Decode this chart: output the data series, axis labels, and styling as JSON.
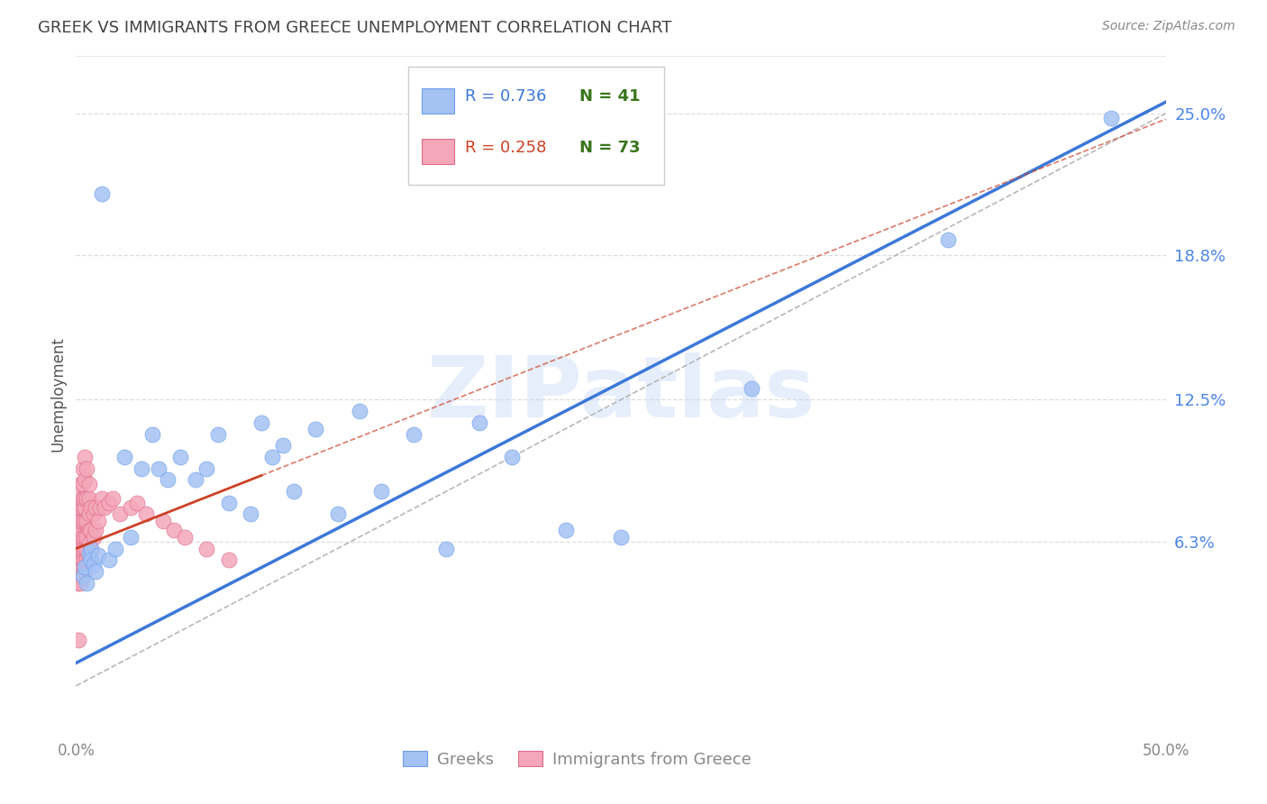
{
  "title": "GREEK VS IMMIGRANTS FROM GREECE UNEMPLOYMENT CORRELATION CHART",
  "source_text": "Source: ZipAtlas.com",
  "ylabel": "Unemployment",
  "watermark": "ZIPatlas",
  "x_min": 0.0,
  "x_max": 0.5,
  "y_min": -0.02,
  "y_max": 0.275,
  "y_ticks_right": [
    0.0,
    0.063,
    0.125,
    0.188,
    0.25
  ],
  "y_tick_labels_right": [
    "",
    "6.3%",
    "12.5%",
    "18.8%",
    "25.0%"
  ],
  "blue_color": "#a4c2f4",
  "pink_color": "#f4a7b9",
  "blue_edge_color": "#6d9eeb",
  "pink_edge_color": "#e06c8a",
  "blue_line_color": "#3c78d8",
  "pink_line_color": "#cc4125",
  "ref_line_color": "#b7b7b7",
  "blue_R": 0.736,
  "blue_N": 41,
  "pink_R": 0.258,
  "pink_N": 73,
  "blue_label": "Greeks",
  "pink_label": "Immigrants from Greece",
  "blue_scatter_x": [
    0.003,
    0.004,
    0.005,
    0.006,
    0.007,
    0.007,
    0.008,
    0.009,
    0.01,
    0.012,
    0.015,
    0.018,
    0.022,
    0.025,
    0.03,
    0.035,
    0.038,
    0.042,
    0.048,
    0.055,
    0.06,
    0.065,
    0.07,
    0.08,
    0.085,
    0.09,
    0.095,
    0.1,
    0.11,
    0.12,
    0.13,
    0.14,
    0.155,
    0.17,
    0.185,
    0.2,
    0.225,
    0.25,
    0.31,
    0.4,
    0.475
  ],
  "blue_scatter_y": [
    0.048,
    0.052,
    0.045,
    0.058,
    0.06,
    0.055,
    0.053,
    0.05,
    0.057,
    0.215,
    0.055,
    0.06,
    0.1,
    0.065,
    0.095,
    0.11,
    0.095,
    0.09,
    0.1,
    0.09,
    0.095,
    0.11,
    0.08,
    0.075,
    0.115,
    0.1,
    0.105,
    0.085,
    0.112,
    0.075,
    0.12,
    0.085,
    0.11,
    0.06,
    0.115,
    0.1,
    0.068,
    0.065,
    0.13,
    0.195,
    0.248
  ],
  "pink_scatter_x": [
    0.001,
    0.001,
    0.001,
    0.001,
    0.001,
    0.001,
    0.001,
    0.001,
    0.001,
    0.002,
    0.002,
    0.002,
    0.002,
    0.002,
    0.002,
    0.002,
    0.002,
    0.002,
    0.002,
    0.003,
    0.003,
    0.003,
    0.003,
    0.003,
    0.003,
    0.003,
    0.003,
    0.003,
    0.003,
    0.004,
    0.004,
    0.004,
    0.004,
    0.004,
    0.004,
    0.004,
    0.004,
    0.004,
    0.005,
    0.005,
    0.005,
    0.005,
    0.005,
    0.005,
    0.006,
    0.006,
    0.006,
    0.006,
    0.006,
    0.006,
    0.007,
    0.007,
    0.007,
    0.008,
    0.008,
    0.009,
    0.009,
    0.01,
    0.011,
    0.012,
    0.013,
    0.015,
    0.017,
    0.02,
    0.025,
    0.028,
    0.032,
    0.04,
    0.045,
    0.05,
    0.06,
    0.07,
    0.001
  ],
  "pink_scatter_y": [
    0.045,
    0.048,
    0.052,
    0.058,
    0.06,
    0.062,
    0.067,
    0.072,
    0.078,
    0.045,
    0.05,
    0.055,
    0.06,
    0.065,
    0.068,
    0.072,
    0.078,
    0.082,
    0.088,
    0.048,
    0.052,
    0.055,
    0.06,
    0.065,
    0.072,
    0.078,
    0.082,
    0.088,
    0.095,
    0.05,
    0.055,
    0.06,
    0.065,
    0.072,
    0.078,
    0.082,
    0.09,
    0.1,
    0.055,
    0.06,
    0.065,
    0.072,
    0.082,
    0.095,
    0.055,
    0.062,
    0.068,
    0.075,
    0.082,
    0.088,
    0.06,
    0.068,
    0.078,
    0.065,
    0.075,
    0.068,
    0.078,
    0.072,
    0.078,
    0.082,
    0.078,
    0.08,
    0.082,
    0.075,
    0.078,
    0.08,
    0.075,
    0.072,
    0.068,
    0.065,
    0.06,
    0.055,
    0.02
  ],
  "background_color": "#ffffff",
  "grid_color": "#dddddd",
  "title_color": "#434343",
  "right_label_color": "#4a86e8",
  "legend_box_color": "#f3f3f3",
  "legend_border_color": "#cccccc",
  "blue_line_x0": 0.0,
  "blue_line_y0": 0.01,
  "blue_line_x1": 0.5,
  "blue_line_y1": 0.255,
  "pink_line_x0": 0.0,
  "pink_line_y0": 0.06,
  "pink_line_x1": 0.08,
  "pink_line_y1": 0.09,
  "ref_line_y0": 0.0,
  "ref_line_y1": 0.25
}
